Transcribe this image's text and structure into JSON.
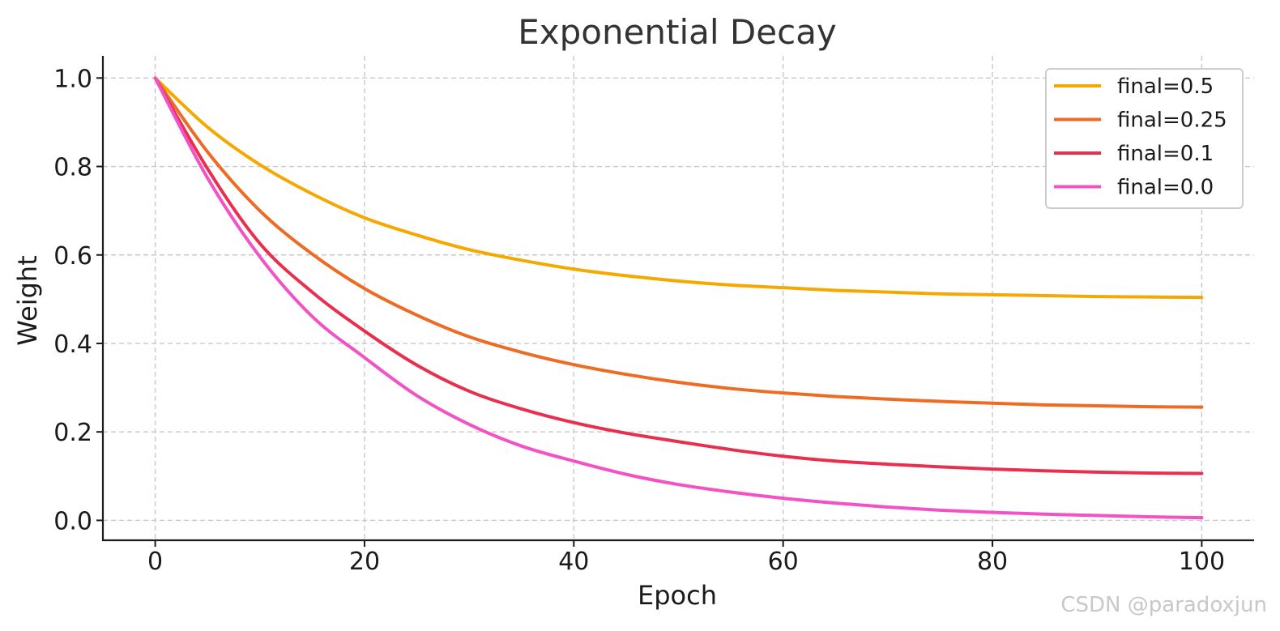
{
  "chart_data": {
    "type": "line",
    "title": "Exponential Decay",
    "xlabel": "Epoch",
    "ylabel": "Weight",
    "xlim": [
      -5,
      105
    ],
    "ylim": [
      -0.045,
      1.05
    ],
    "xticks": [
      0,
      20,
      40,
      60,
      80,
      100
    ],
    "yticks": [
      0.0,
      0.2,
      0.4,
      0.6,
      0.8,
      1.0
    ],
    "xtick_labels": [
      "0",
      "20",
      "40",
      "60",
      "80",
      "100"
    ],
    "ytick_labels": [
      "0.0",
      "0.2",
      "0.4",
      "0.6",
      "0.8",
      "1.0"
    ],
    "grid": true,
    "legend_position": "top-right",
    "x": [
      0,
      5,
      10,
      15,
      20,
      25,
      30,
      35,
      40,
      45,
      50,
      55,
      60,
      65,
      70,
      75,
      80,
      85,
      90,
      95,
      100
    ],
    "series": [
      {
        "name": "final=0.5",
        "color": "#f5a800",
        "values": [
          1.0,
          0.889,
          0.804,
          0.738,
          0.684,
          0.645,
          0.612,
          0.588,
          0.568,
          0.553,
          0.541,
          0.532,
          0.526,
          0.52,
          0.516,
          0.512,
          0.51,
          0.508,
          0.506,
          0.505,
          0.504
        ]
      },
      {
        "name": "final=0.25",
        "color": "#ee6b24",
        "values": [
          1.0,
          0.833,
          0.7,
          0.602,
          0.524,
          0.464,
          0.415,
          0.38,
          0.352,
          0.33,
          0.312,
          0.298,
          0.288,
          0.28,
          0.274,
          0.269,
          0.265,
          0.261,
          0.259,
          0.257,
          0.256
        ]
      },
      {
        "name": "final=0.1",
        "color": "#e8304e",
        "values": [
          1.0,
          0.795,
          0.626,
          0.516,
          0.428,
          0.351,
          0.292,
          0.252,
          0.221,
          0.197,
          0.178,
          0.16,
          0.145,
          0.134,
          0.127,
          0.121,
          0.116,
          0.112,
          0.109,
          0.107,
          0.106
        ]
      },
      {
        "name": "final=0.0",
        "color": "#f252c4",
        "values": [
          1.0,
          0.774,
          0.596,
          0.461,
          0.368,
          0.282,
          0.217,
          0.168,
          0.134,
          0.104,
          0.081,
          0.064,
          0.05,
          0.039,
          0.03,
          0.023,
          0.018,
          0.014,
          0.011,
          0.008,
          0.006
        ]
      }
    ]
  },
  "watermark": "CSDN @paradoxjun"
}
